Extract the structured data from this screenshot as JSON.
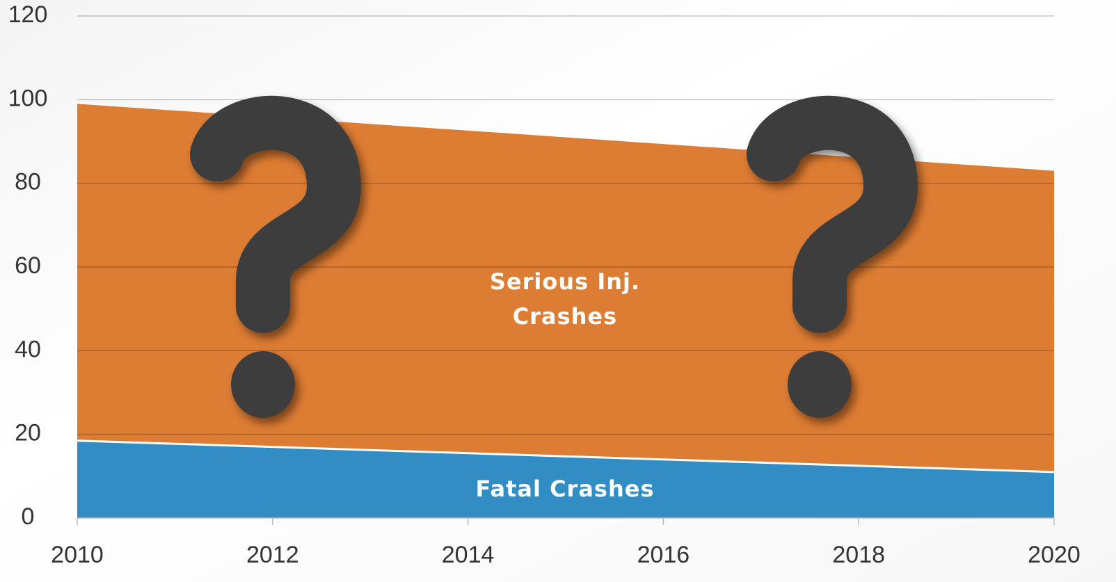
{
  "chart_data": {
    "type": "stacked_area",
    "x": [
      2010,
      2020
    ],
    "series": [
      {
        "name": "Fatal Crashes",
        "color": "#318dc3",
        "values": [
          18.5,
          11
        ]
      },
      {
        "name": "Serious Inj. Crashes",
        "color": "#dd7c33",
        "values": [
          80.5,
          72
        ]
      }
    ],
    "xlim": [
      2010,
      2020
    ],
    "xticks": [
      2010,
      2012,
      2014,
      2016,
      2018,
      2020
    ],
    "ylim": [
      0,
      120
    ],
    "yticks": [
      0,
      20,
      40,
      60,
      80,
      100,
      120
    ],
    "grid": true
  }
}
